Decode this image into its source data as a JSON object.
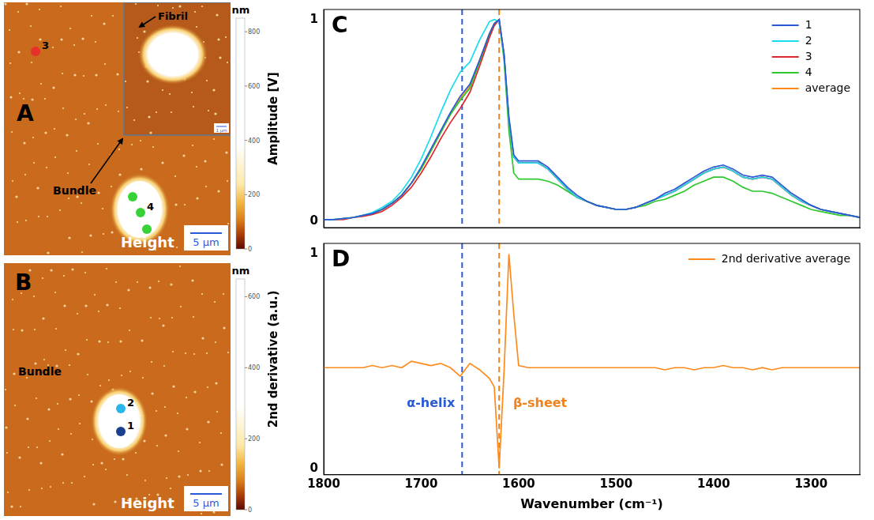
{
  "images": [
    {
      "letter": "A",
      "title": "Height",
      "scale_bar": "5 µm",
      "colorbar_label": "nm",
      "colorbar_range": [
        0,
        850
      ],
      "colorbar_ticks": [
        0,
        200,
        400,
        600,
        800
      ],
      "annotations": [
        "Bundle"
      ],
      "inset": {
        "label": "Fibril",
        "scale_bar": "1 µm"
      },
      "markers": [
        {
          "label": "3",
          "color": "#e8302a"
        },
        {
          "label": "4",
          "color": "#36d236"
        }
      ]
    },
    {
      "letter": "B",
      "title": "Height",
      "scale_bar": "5 µm",
      "colorbar_label": "nm",
      "colorbar_range": [
        0,
        650
      ],
      "colorbar_ticks": [
        0,
        200,
        400,
        600
      ],
      "annotations": [
        "Bundle"
      ],
      "markers": [
        {
          "label": "2",
          "color": "#29b6e8"
        },
        {
          "label": "1",
          "color": "#1b3f8f"
        }
      ]
    }
  ],
  "chart_data": [
    {
      "type": "line",
      "label": "C",
      "y_label": "Amplitude [V]",
      "x": [
        1800,
        1790,
        1780,
        1770,
        1760,
        1750,
        1740,
        1730,
        1720,
        1710,
        1700,
        1690,
        1680,
        1670,
        1660,
        1650,
        1640,
        1630,
        1625,
        1620,
        1615,
        1610,
        1605,
        1600,
        1590,
        1580,
        1570,
        1560,
        1550,
        1540,
        1530,
        1520,
        1510,
        1500,
        1490,
        1480,
        1470,
        1460,
        1450,
        1440,
        1430,
        1420,
        1410,
        1400,
        1390,
        1380,
        1370,
        1360,
        1350,
        1340,
        1330,
        1320,
        1310,
        1300,
        1290,
        1280,
        1270,
        1260,
        1250
      ],
      "xlim": [
        1800,
        1250
      ],
      "xticks": [
        1800,
        1700,
        1600,
        1500,
        1400,
        1300
      ],
      "ylim": [
        -0.03,
        1.05
      ],
      "yticks": [
        0,
        1
      ],
      "grid": false,
      "legend": "upper right",
      "tick_labels": "y",
      "vlines": [
        {
          "x": 1658,
          "color": "#2a5bd7",
          "line_style": "dashed"
        },
        {
          "x": 1620,
          "color": "#f0821e",
          "line_style": "dashed"
        }
      ],
      "series": [
        {
          "name": "1",
          "color": "#2a5bd7",
          "values": [
            0.01,
            0.01,
            0.015,
            0.02,
            0.03,
            0.04,
            0.06,
            0.09,
            0.13,
            0.19,
            0.27,
            0.36,
            0.45,
            0.54,
            0.62,
            0.68,
            0.8,
            0.93,
            0.98,
            1.0,
            0.83,
            0.52,
            0.33,
            0.3,
            0.3,
            0.3,
            0.27,
            0.22,
            0.17,
            0.13,
            0.1,
            0.08,
            0.07,
            0.06,
            0.06,
            0.07,
            0.09,
            0.11,
            0.14,
            0.16,
            0.19,
            0.22,
            0.25,
            0.27,
            0.28,
            0.26,
            0.23,
            0.22,
            0.23,
            0.22,
            0.18,
            0.14,
            0.11,
            0.08,
            0.06,
            0.05,
            0.04,
            0.03,
            0.02
          ]
        },
        {
          "name": "2",
          "color": "#19dcef",
          "values": [
            0.01,
            0.01,
            0.015,
            0.02,
            0.03,
            0.045,
            0.07,
            0.1,
            0.15,
            0.22,
            0.31,
            0.42,
            0.54,
            0.65,
            0.74,
            0.79,
            0.9,
            0.99,
            1.0,
            0.99,
            0.82,
            0.5,
            0.32,
            0.29,
            0.29,
            0.29,
            0.26,
            0.21,
            0.16,
            0.12,
            0.1,
            0.08,
            0.07,
            0.06,
            0.06,
            0.07,
            0.09,
            0.11,
            0.13,
            0.15,
            0.18,
            0.21,
            0.24,
            0.26,
            0.27,
            0.25,
            0.22,
            0.21,
            0.22,
            0.21,
            0.17,
            0.13,
            0.1,
            0.08,
            0.06,
            0.05,
            0.04,
            0.03,
            0.02
          ]
        },
        {
          "name": "3",
          "color": "#e0282a",
          "values": [
            0.01,
            0.01,
            0.01,
            0.02,
            0.025,
            0.035,
            0.05,
            0.08,
            0.12,
            0.17,
            0.24,
            0.32,
            0.41,
            0.49,
            0.56,
            0.64,
            0.77,
            0.91,
            0.97,
            1.0,
            0.83,
            0.5,
            0.32,
            0.29,
            0.29,
            0.29,
            0.26,
            0.21,
            0.16,
            0.12,
            0.1,
            0.08,
            0.07,
            0.06,
            0.06,
            0.07,
            0.09,
            0.11,
            0.13,
            0.15,
            0.18,
            0.21,
            0.24,
            0.26,
            0.27,
            0.25,
            0.22,
            0.21,
            0.22,
            0.21,
            0.17,
            0.13,
            0.1,
            0.08,
            0.06,
            0.05,
            0.04,
            0.03,
            0.02
          ]
        },
        {
          "name": "4",
          "color": "#2ec82e",
          "values": [
            0.01,
            0.01,
            0.015,
            0.02,
            0.03,
            0.04,
            0.06,
            0.09,
            0.13,
            0.19,
            0.26,
            0.35,
            0.44,
            0.53,
            0.6,
            0.66,
            0.79,
            0.92,
            0.98,
            1.0,
            0.8,
            0.45,
            0.24,
            0.21,
            0.21,
            0.21,
            0.2,
            0.18,
            0.15,
            0.12,
            0.1,
            0.08,
            0.07,
            0.06,
            0.06,
            0.07,
            0.08,
            0.1,
            0.11,
            0.13,
            0.15,
            0.18,
            0.2,
            0.22,
            0.22,
            0.2,
            0.17,
            0.15,
            0.15,
            0.14,
            0.12,
            0.1,
            0.08,
            0.06,
            0.05,
            0.04,
            0.03,
            0.03,
            0.02
          ]
        },
        {
          "name": "average",
          "color": "#ff8a1c",
          "values": [
            0.01,
            0.01,
            0.015,
            0.02,
            0.03,
            0.04,
            0.06,
            0.09,
            0.13,
            0.19,
            0.26,
            0.35,
            0.44,
            0.53,
            0.61,
            0.67,
            0.8,
            0.93,
            0.98,
            1.0,
            0.82,
            0.5,
            0.32,
            0.29,
            0.29,
            0.29,
            0.26,
            0.21,
            0.16,
            0.12,
            0.1,
            0.08,
            0.07,
            0.06,
            0.06,
            0.07,
            0.09,
            0.11,
            0.13,
            0.15,
            0.18,
            0.21,
            0.24,
            0.26,
            0.27,
            0.25,
            0.22,
            0.21,
            0.22,
            0.21,
            0.17,
            0.13,
            0.1,
            0.08,
            0.06,
            0.05,
            0.04,
            0.03,
            0.02
          ]
        }
      ]
    },
    {
      "type": "line",
      "label": "D",
      "x_label": "Wavenumber (cm⁻¹)",
      "y_label": "2nd derivative (a.u.)",
      "x": [
        1800,
        1790,
        1780,
        1770,
        1760,
        1750,
        1740,
        1730,
        1720,
        1710,
        1700,
        1690,
        1680,
        1670,
        1660,
        1650,
        1640,
        1630,
        1625,
        1620,
        1615,
        1610,
        1605,
        1600,
        1590,
        1580,
        1570,
        1560,
        1550,
        1540,
        1530,
        1520,
        1510,
        1500,
        1490,
        1480,
        1470,
        1460,
        1450,
        1440,
        1430,
        1420,
        1410,
        1400,
        1390,
        1380,
        1370,
        1360,
        1350,
        1340,
        1330,
        1320,
        1310,
        1300,
        1290,
        1280,
        1270,
        1260,
        1250
      ],
      "xlim": [
        1800,
        1250
      ],
      "xticks": [
        1800,
        1700,
        1600,
        1500,
        1400,
        1300
      ],
      "ylim": [
        -0.03,
        1.05
      ],
      "yticks": [
        0,
        1
      ],
      "grid": false,
      "legend": "upper right",
      "vlines": [
        {
          "x": 1658,
          "color": "#2a5bd7",
          "line_style": "dashed"
        },
        {
          "x": 1620,
          "color": "#f0821e",
          "line_style": "dashed"
        }
      ],
      "annotations": [
        {
          "text": "α-helix",
          "x": 1690,
          "y": 0.3,
          "color": "#2a5bd7"
        },
        {
          "text": "β-sheet",
          "x": 1578,
          "y": 0.3,
          "color": "#f0821e"
        }
      ],
      "series": [
        {
          "name": "2nd derivative average",
          "color": "#ff8a1c",
          "values": [
            0.47,
            0.47,
            0.47,
            0.47,
            0.47,
            0.48,
            0.47,
            0.48,
            0.47,
            0.5,
            0.49,
            0.48,
            0.49,
            0.47,
            0.43,
            0.49,
            0.46,
            0.42,
            0.38,
            0.0,
            0.45,
            1.0,
            0.72,
            0.48,
            0.47,
            0.47,
            0.47,
            0.47,
            0.47,
            0.47,
            0.47,
            0.47,
            0.47,
            0.47,
            0.47,
            0.47,
            0.47,
            0.47,
            0.46,
            0.47,
            0.47,
            0.46,
            0.47,
            0.47,
            0.48,
            0.47,
            0.47,
            0.46,
            0.47,
            0.46,
            0.47,
            0.47,
            0.47,
            0.47,
            0.47,
            0.47,
            0.47,
            0.47,
            0.47
          ]
        }
      ]
    }
  ]
}
